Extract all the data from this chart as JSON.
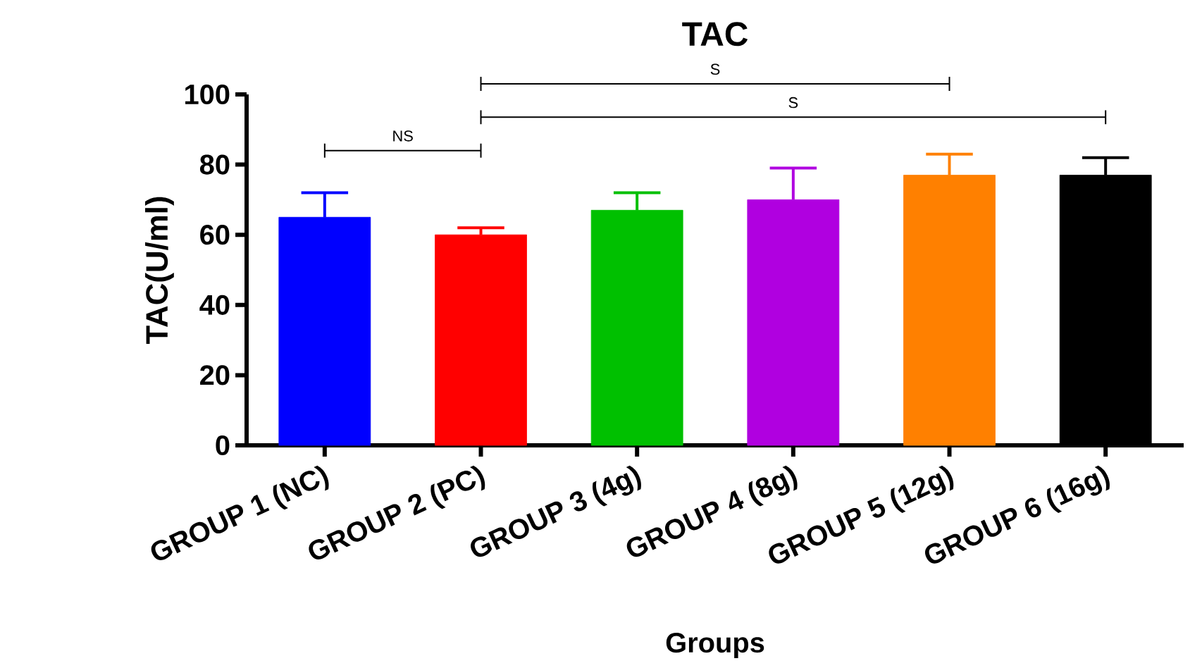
{
  "chart_data": {
    "type": "bar",
    "title": "TAC",
    "xlabel": "Groups",
    "ylabel": "TAC(U/ml)",
    "categories": [
      "GROUP 1 (NC)",
      "GROUP 2 (PC)",
      "GROUP 3 (4g)",
      "GROUP 4 (8g)",
      "GROUP 5 (12g)",
      "GROUP 6 (16g)"
    ],
    "values": [
      65,
      60,
      67,
      70,
      77,
      77
    ],
    "errors": [
      [
        65,
        72
      ],
      [
        60,
        62
      ],
      [
        67,
        72
      ],
      [
        70,
        79
      ],
      [
        77,
        83
      ],
      [
        77,
        82
      ]
    ],
    "colors": [
      "#0000ff",
      "#ff0000",
      "#00c000",
      "#b000e0",
      "#ff8000",
      "#000000"
    ],
    "ylim": [
      0,
      100
    ],
    "yticks": [
      0,
      20,
      40,
      60,
      80,
      100
    ],
    "grid": false,
    "annotations": [
      "NS",
      "S",
      "S"
    ]
  }
}
